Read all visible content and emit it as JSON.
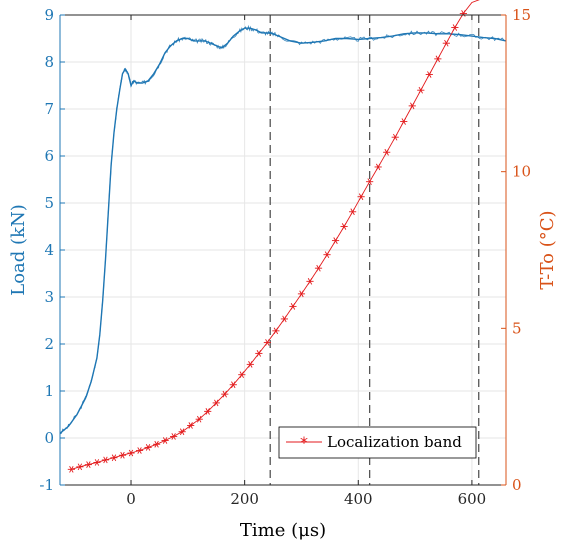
{
  "chart_data": {
    "type": "line",
    "xlabel": "Time (μs)",
    "ylabel_left": "Load (kN)",
    "ylabel_right": "T-To (°C)",
    "xlim": [
      -125,
      660
    ],
    "ylim_left": [
      -1,
      9
    ],
    "ylim_right": [
      0,
      15
    ],
    "x_ticks": [
      0,
      200,
      400,
      600
    ],
    "y_left_ticks": [
      -1,
      0,
      1,
      2,
      3,
      4,
      5,
      6,
      7,
      8,
      9
    ],
    "y_right_ticks": [
      0,
      5,
      10,
      15
    ],
    "grid": true,
    "legend_position": "bottom-right",
    "colors": {
      "load": "#1f77b4",
      "temperature": "#e31a1c",
      "right_axis": "#d95319",
      "vlines": "#555555"
    },
    "vlines_x": [
      245,
      420,
      612
    ],
    "series": [
      {
        "axis": "left",
        "color": "#1f77b4",
        "x": [
          -125,
          -110,
          -95,
          -80,
          -70,
          -60,
          -55,
          -50,
          -45,
          -40,
          -35,
          -30,
          -25,
          -20,
          -15,
          -10,
          -5,
          0,
          5,
          10,
          20,
          30,
          40,
          50,
          60,
          70,
          80,
          90,
          100,
          110,
          120,
          130,
          140,
          150,
          160,
          170,
          180,
          190,
          200,
          210,
          220,
          230,
          240,
          250,
          260,
          280,
          300,
          320,
          340,
          360,
          380,
          400,
          420,
          440,
          460,
          480,
          500,
          520,
          540,
          560,
          580,
          600,
          620,
          640,
          660
        ],
        "y": [
          0.1,
          0.25,
          0.5,
          0.85,
          1.2,
          1.7,
          2.2,
          2.9,
          3.8,
          4.8,
          5.8,
          6.5,
          7.0,
          7.4,
          7.75,
          7.85,
          7.75,
          7.5,
          7.6,
          7.55,
          7.55,
          7.6,
          7.75,
          7.95,
          8.2,
          8.35,
          8.45,
          8.5,
          8.5,
          8.45,
          8.45,
          8.45,
          8.4,
          8.35,
          8.3,
          8.4,
          8.55,
          8.65,
          8.72,
          8.72,
          8.68,
          8.62,
          8.62,
          8.6,
          8.55,
          8.45,
          8.4,
          8.42,
          8.45,
          8.5,
          8.5,
          8.48,
          8.5,
          8.52,
          8.55,
          8.6,
          8.62,
          8.62,
          8.6,
          8.6,
          8.58,
          8.55,
          8.52,
          8.5,
          8.45
        ]
      },
      {
        "name": "Localization band",
        "axis": "right",
        "color": "#e31a1c",
        "x": [
          -105,
          -90,
          -75,
          -60,
          -45,
          -30,
          -15,
          0,
          15,
          30,
          45,
          60,
          75,
          90,
          105,
          120,
          135,
          150,
          165,
          180,
          195,
          210,
          225,
          240,
          255,
          270,
          285,
          300,
          315,
          330,
          345,
          360,
          375,
          390,
          405,
          420,
          435,
          450,
          465,
          480,
          495,
          510,
          525,
          540,
          555,
          570,
          585,
          600,
          615,
          630,
          645
        ],
        "y": [
          0.5,
          0.58,
          0.65,
          0.72,
          0.8,
          0.87,
          0.95,
          1.02,
          1.1,
          1.2,
          1.3,
          1.42,
          1.55,
          1.7,
          1.9,
          2.1,
          2.35,
          2.62,
          2.9,
          3.2,
          3.52,
          3.85,
          4.2,
          4.55,
          4.92,
          5.3,
          5.7,
          6.1,
          6.5,
          6.92,
          7.35,
          7.8,
          8.25,
          8.72,
          9.2,
          9.68,
          10.15,
          10.62,
          11.1,
          11.6,
          12.1,
          12.6,
          13.1,
          13.6,
          14.1,
          14.6,
          15.05,
          15.4,
          15.7,
          15.95,
          16.2
        ]
      }
    ]
  }
}
